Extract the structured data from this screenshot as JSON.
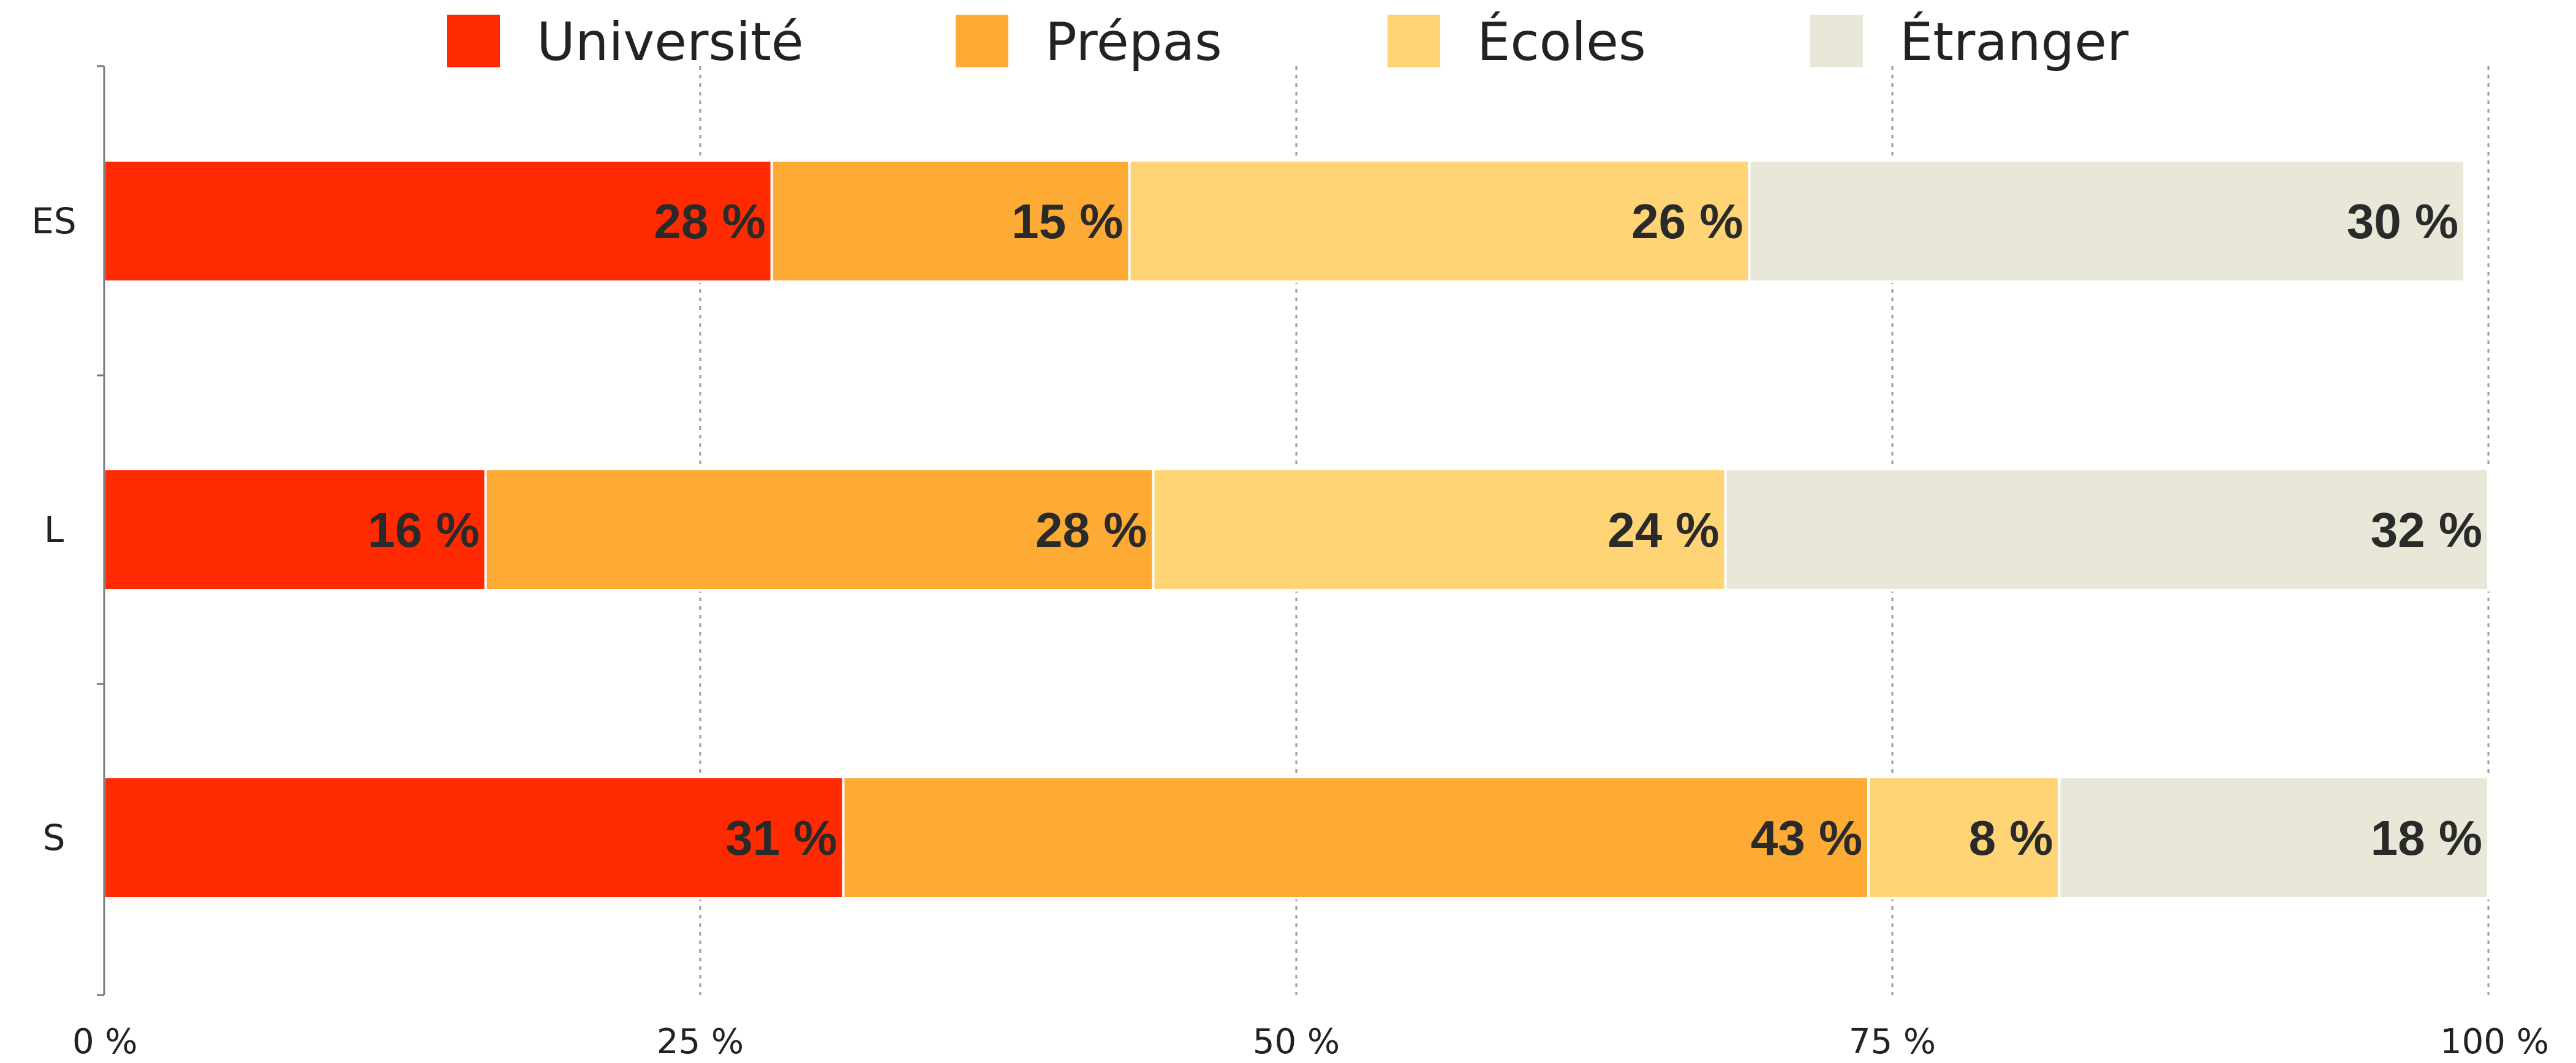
{
  "chart_data": {
    "type": "bar",
    "orientation": "horizontal",
    "stacked": true,
    "categories": [
      "ES",
      "L",
      "S"
    ],
    "series": [
      {
        "name": "Université",
        "color": "#ff2a00",
        "values": [
          28,
          16,
          31
        ],
        "labels": [
          "28 %",
          "16 %",
          "31 %"
        ]
      },
      {
        "name": "Prépas",
        "color": "#fdab35",
        "values": [
          15,
          28,
          43
        ],
        "labels": [
          "15 %",
          "28 %",
          "43 %"
        ]
      },
      {
        "name": "Écoles",
        "color": "#fed477",
        "values": [
          26,
          24,
          8
        ],
        "labels": [
          "26 %",
          "24 %",
          "8 %"
        ]
      },
      {
        "name": "Étranger",
        "color": "#e9e7d8",
        "values": [
          30,
          32,
          18
        ],
        "labels": [
          "30 %",
          "32 %",
          "18 %"
        ]
      }
    ],
    "xlim": [
      0,
      100
    ],
    "xticks": [
      0,
      25,
      50,
      75,
      100
    ],
    "xtick_labels": [
      "0 %",
      "25 %",
      "50 %",
      "75 %",
      "100 %"
    ],
    "grid": "vertical-dotted",
    "legend": "top-center",
    "title": "",
    "xlabel": "",
    "ylabel": ""
  }
}
